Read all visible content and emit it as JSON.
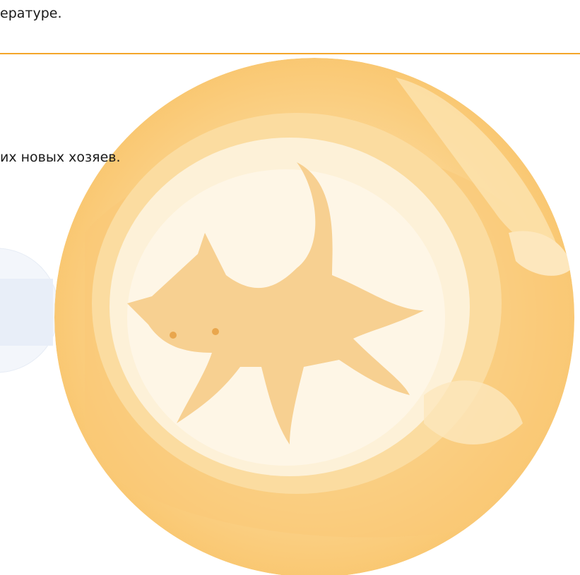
{
  "page": {
    "text_top": "ературе.",
    "text_middle": "их новых хозяев."
  }
}
